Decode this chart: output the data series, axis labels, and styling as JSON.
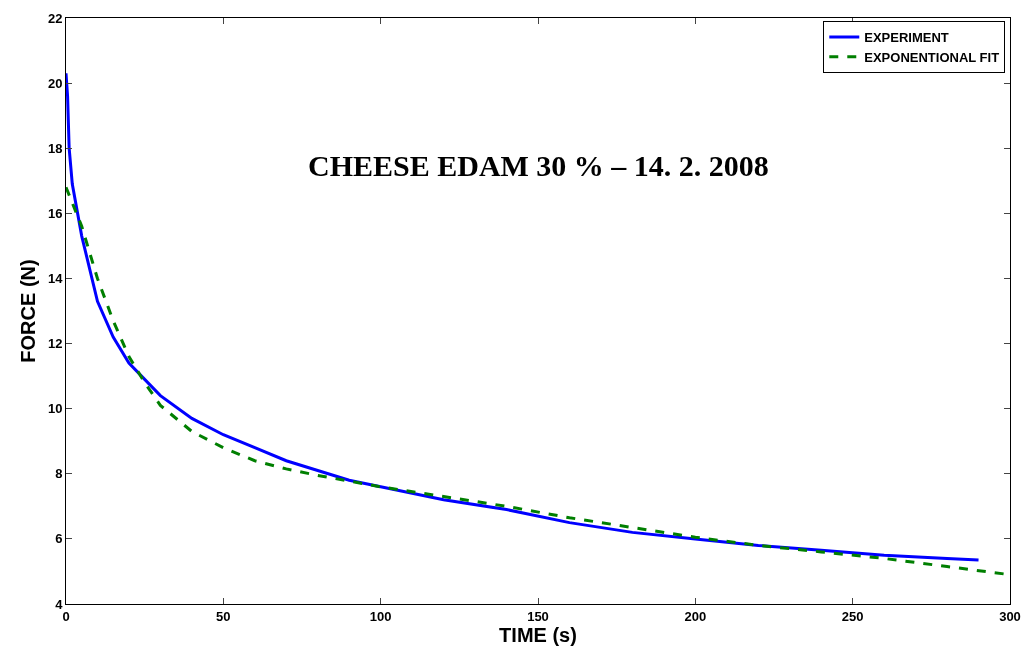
{
  "chart_data": {
    "type": "line",
    "title": "CHEESE EDAM 30 % – 14. 2. 2008",
    "xlabel": "TIME (s)",
    "ylabel": "FORCE (N)",
    "xlim": [
      0,
      300
    ],
    "xticks": [
      0,
      50,
      100,
      150,
      200,
      250,
      300
    ],
    "ylim": [
      4,
      22
    ],
    "yticks": [
      4,
      6,
      8,
      10,
      12,
      14,
      16,
      18,
      20,
      22
    ],
    "grid": false,
    "legend": "top right",
    "series": [
      {
        "name": "EXPERIMENT",
        "color": "#0000ff",
        "line_style": "solid",
        "x": [
          0,
          0.5,
          1,
          2,
          5,
          10,
          15,
          20,
          25,
          30,
          40,
          50,
          60,
          70,
          80,
          90,
          100,
          120,
          140,
          160,
          180,
          200,
          220,
          240,
          260,
          280,
          290
        ],
        "values": [
          20.3,
          19.6,
          18,
          16.9,
          15.3,
          13.3,
          12.2,
          11.4,
          10.9,
          10.4,
          9.7,
          9.2,
          8.8,
          8.4,
          8.1,
          7.8,
          7.6,
          7.2,
          6.9,
          6.5,
          6.2,
          6.0,
          5.8,
          5.65,
          5.5,
          5.4,
          5.35
        ]
      },
      {
        "name": "EXPONENTIONAL FIT",
        "color": "#007f00",
        "line_style": "dashed",
        "x": [
          0,
          5,
          10,
          15,
          20,
          25,
          30,
          40,
          50,
          60,
          70,
          80,
          100,
          120,
          140,
          160,
          180,
          200,
          220,
          240,
          260,
          280,
          300
        ],
        "values": [
          16.8,
          15.6,
          14.0,
          12.7,
          11.6,
          10.8,
          10.1,
          9.3,
          8.8,
          8.4,
          8.15,
          7.95,
          7.6,
          7.3,
          7.0,
          6.65,
          6.35,
          6.05,
          5.8,
          5.6,
          5.4,
          5.15,
          4.9
        ]
      }
    ]
  }
}
